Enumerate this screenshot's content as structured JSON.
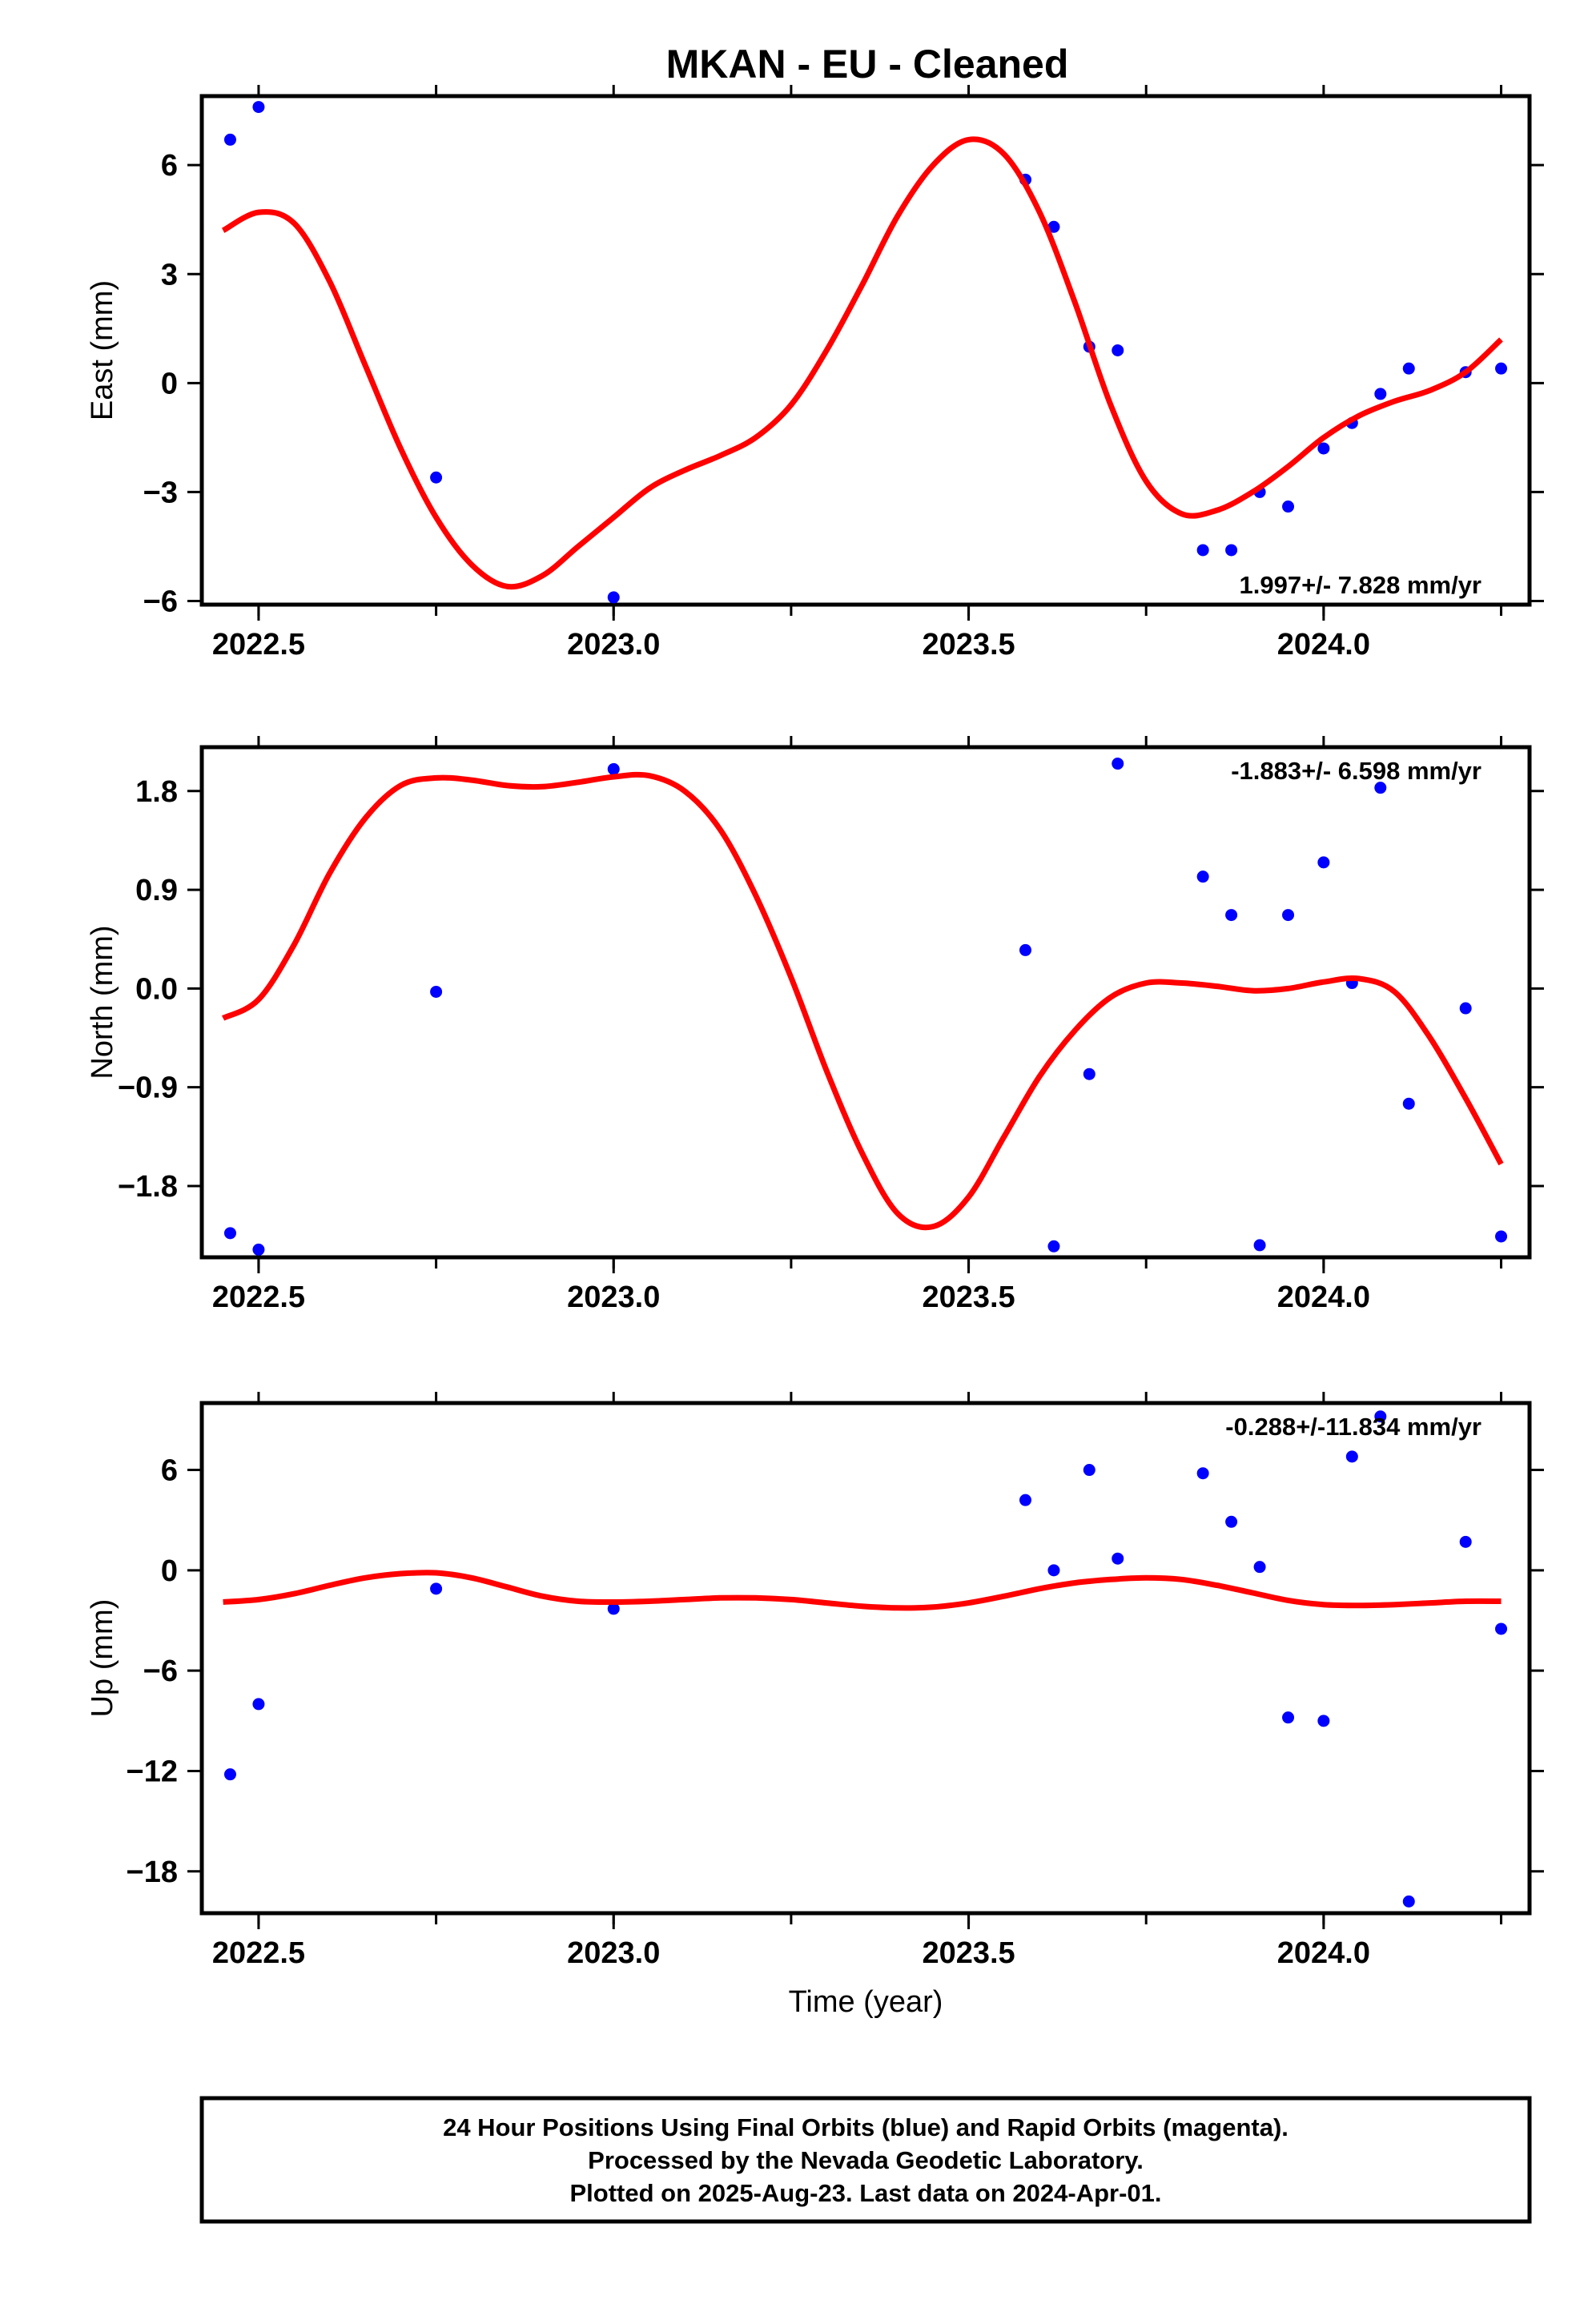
{
  "title": "MKAN  - EU - Cleaned",
  "footer": {
    "lines": [
      "24 Hour Positions Using Final Orbits (blue) and Rapid Orbits (magenta).",
      "Processed by the Nevada Geodetic Laboratory.",
      "Plotted on 2025-Aug-23. Last data on 2024-Apr-01."
    ]
  },
  "colors": {
    "final_orbits": "#0000ff",
    "fit": "#ff0000",
    "frame": "#000000"
  },
  "chart_data": [
    {
      "type": "scatter",
      "component": "east",
      "ylabel": "East (mm)",
      "rate_label": "1.997+/- 7.828 mm/yr",
      "xlim": [
        2022.42,
        2024.29
      ],
      "ylim": [
        -6.1,
        7.9
      ],
      "xticks": [
        2022.5,
        2023.0,
        2023.5,
        2024.0
      ],
      "xtick_labels": [
        "2022.5",
        "2023.0",
        "2023.5",
        "2024.0"
      ],
      "yticks": [
        -6,
        -3,
        0,
        3,
        6
      ],
      "ytick_labels": [
        "−6",
        "−3",
        "0",
        "3",
        "6"
      ],
      "points": {
        "x": [
          2022.46,
          2022.5,
          2022.75,
          2023.0,
          2023.58,
          2023.62,
          2023.67,
          2023.71,
          2023.83,
          2023.87,
          2023.91,
          2023.95,
          2024.0,
          2024.04,
          2024.08,
          2024.12,
          2024.2,
          2024.25
        ],
        "y": [
          6.7,
          7.6,
          -2.6,
          -5.9,
          5.6,
          4.3,
          1.0,
          0.9,
          -4.6,
          -4.6,
          -3.0,
          -3.4,
          -1.8,
          -1.1,
          -0.3,
          0.4,
          0.3,
          0.4
        ]
      },
      "fit": {
        "x": [
          2022.45,
          2022.5,
          2022.55,
          2022.6,
          2022.65,
          2022.7,
          2022.75,
          2022.8,
          2022.85,
          2022.9,
          2022.95,
          2023.0,
          2023.05,
          2023.1,
          2023.15,
          2023.2,
          2023.25,
          2023.3,
          2023.35,
          2023.4,
          2023.45,
          2023.5,
          2023.55,
          2023.6,
          2023.65,
          2023.7,
          2023.75,
          2023.8,
          2023.85,
          2023.9,
          2023.95,
          2024.0,
          2024.05,
          2024.1,
          2024.15,
          2024.2,
          2024.25
        ],
        "y": [
          4.2,
          4.7,
          4.4,
          2.8,
          0.5,
          -1.8,
          -3.7,
          -5.0,
          -5.6,
          -5.3,
          -4.5,
          -3.7,
          -2.9,
          -2.4,
          -2.0,
          -1.5,
          -0.6,
          0.9,
          2.7,
          4.6,
          6.0,
          6.7,
          6.3,
          4.7,
          2.2,
          -0.6,
          -2.7,
          -3.6,
          -3.5,
          -3.0,
          -2.3,
          -1.5,
          -0.9,
          -0.5,
          -0.2,
          0.3,
          1.2
        ]
      }
    },
    {
      "type": "scatter",
      "component": "north",
      "ylabel": "North (mm)",
      "rate_label": "-1.883+/- 6.598 mm/yr",
      "xlim": [
        2022.42,
        2024.29
      ],
      "ylim": [
        -2.45,
        2.2
      ],
      "xticks": [
        2022.5,
        2023.0,
        2023.5,
        2024.0
      ],
      "xtick_labels": [
        "2022.5",
        "2023.0",
        "2023.5",
        "2024.0"
      ],
      "yticks": [
        -1.8,
        -0.9,
        0.0,
        0.9,
        1.8
      ],
      "ytick_labels": [
        "−1.8",
        "−0.9",
        "0.0",
        "0.9",
        "1.8"
      ],
      "points": {
        "x": [
          2022.46,
          2022.5,
          2022.75,
          2023.0,
          2023.58,
          2023.62,
          2023.67,
          2023.71,
          2023.83,
          2023.87,
          2023.91,
          2023.95,
          2024.0,
          2024.04,
          2024.08,
          2024.12,
          2024.2,
          2024.25
        ],
        "y": [
          -2.23,
          -2.38,
          -0.03,
          2.0,
          0.35,
          -2.35,
          -0.78,
          2.05,
          1.02,
          0.67,
          -2.34,
          0.67,
          1.15,
          0.05,
          1.83,
          -1.05,
          -0.18,
          -2.26
        ]
      },
      "fit": {
        "x": [
          2022.45,
          2022.5,
          2022.55,
          2022.6,
          2022.65,
          2022.7,
          2022.75,
          2022.8,
          2022.85,
          2022.9,
          2022.95,
          2023.0,
          2023.05,
          2023.1,
          2023.15,
          2023.2,
          2023.25,
          2023.3,
          2023.35,
          2023.4,
          2023.45,
          2023.5,
          2023.55,
          2023.6,
          2023.65,
          2023.7,
          2023.75,
          2023.8,
          2023.85,
          2023.9,
          2023.95,
          2024.0,
          2024.05,
          2024.1,
          2024.15,
          2024.2,
          2024.25
        ],
        "y": [
          -0.27,
          -0.1,
          0.4,
          1.05,
          1.55,
          1.85,
          1.92,
          1.9,
          1.85,
          1.84,
          1.88,
          1.93,
          1.94,
          1.8,
          1.45,
          0.85,
          0.1,
          -0.75,
          -1.5,
          -2.05,
          -2.17,
          -1.9,
          -1.35,
          -0.8,
          -0.38,
          -0.08,
          0.05,
          0.05,
          0.02,
          -0.02,
          0.0,
          0.06,
          0.09,
          -0.03,
          -0.45,
          -1.0,
          -1.6
        ]
      }
    },
    {
      "type": "scatter",
      "component": "up",
      "ylabel": "Up (mm)",
      "rate_label": "-0.288+/-11.834 mm/yr",
      "xlabel": "Time (year)",
      "xlim": [
        2022.42,
        2024.29
      ],
      "ylim": [
        -20.5,
        10
      ],
      "xticks": [
        2022.5,
        2023.0,
        2023.5,
        2024.0
      ],
      "xtick_labels": [
        "2022.5",
        "2023.0",
        "2023.5",
        "2024.0"
      ],
      "yticks": [
        -18,
        -12,
        -6,
        0,
        6
      ],
      "ytick_labels": [
        "−18",
        "−12",
        "−6",
        "0",
        "6"
      ],
      "points": {
        "x": [
          2022.46,
          2022.5,
          2022.75,
          2023.0,
          2023.58,
          2023.62,
          2023.67,
          2023.71,
          2023.83,
          2023.87,
          2023.91,
          2023.95,
          2024.0,
          2024.04,
          2024.08,
          2024.12,
          2024.2,
          2024.25
        ],
        "y": [
          -12.2,
          -8.0,
          -1.1,
          -2.3,
          4.2,
          0.0,
          6.0,
          0.7,
          5.8,
          2.9,
          0.2,
          -8.8,
          -9.0,
          6.8,
          9.2,
          -19.8,
          1.7,
          -3.5
        ]
      },
      "fit": {
        "x": [
          2022.45,
          2022.5,
          2022.55,
          2022.6,
          2022.65,
          2022.7,
          2022.75,
          2022.8,
          2022.85,
          2022.9,
          2022.95,
          2023.0,
          2023.05,
          2023.1,
          2023.15,
          2023.2,
          2023.25,
          2023.3,
          2023.35,
          2023.4,
          2023.45,
          2023.5,
          2023.55,
          2023.6,
          2023.65,
          2023.7,
          2023.75,
          2023.8,
          2023.85,
          2023.9,
          2023.95,
          2024.0,
          2024.05,
          2024.1,
          2024.15,
          2024.2,
          2024.25
        ],
        "y": [
          -1.9,
          -1.75,
          -1.4,
          -0.9,
          -0.45,
          -0.2,
          -0.15,
          -0.45,
          -1.0,
          -1.55,
          -1.85,
          -1.9,
          -1.85,
          -1.75,
          -1.65,
          -1.65,
          -1.75,
          -1.95,
          -2.15,
          -2.25,
          -2.2,
          -1.95,
          -1.55,
          -1.1,
          -0.75,
          -0.55,
          -0.45,
          -0.55,
          -0.9,
          -1.35,
          -1.8,
          -2.05,
          -2.1,
          -2.05,
          -1.95,
          -1.85,
          -1.85
        ]
      }
    }
  ]
}
